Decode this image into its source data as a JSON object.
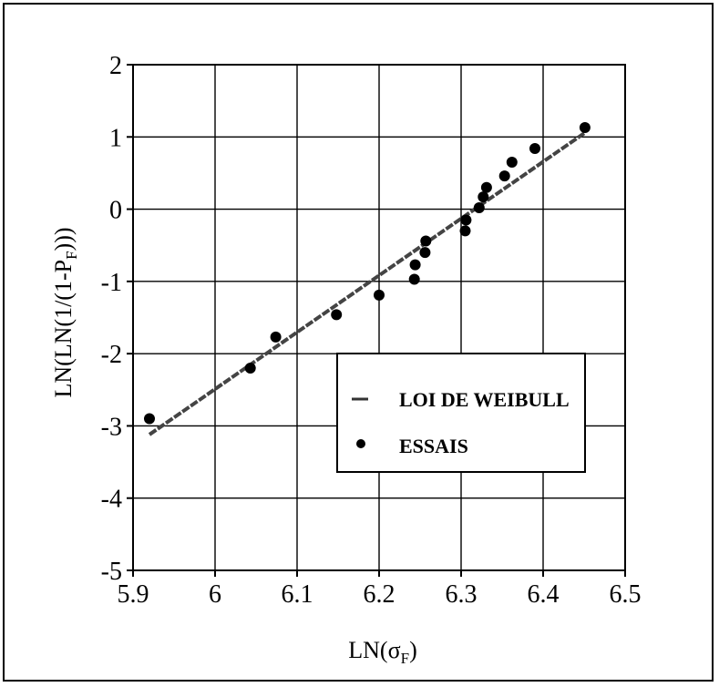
{
  "chart_data": {
    "type": "scatter",
    "xlabel_parts": [
      "LN(",
      "σ",
      "F",
      ")"
    ],
    "ylabel_parts": [
      "LN(LN(1/(1-P",
      "F",
      ")))"
    ],
    "xlim": [
      5.9,
      6.5
    ],
    "ylim": [
      -5,
      2
    ],
    "x_ticks": [
      5.9,
      6,
      6.1,
      6.2,
      6.3,
      6.4,
      6.5
    ],
    "x_tick_labels": [
      "5.9",
      "6",
      "6.1",
      "6.2",
      "6.3",
      "6.4",
      "6.5"
    ],
    "y_ticks": [
      -5,
      -4,
      -3,
      -2,
      -1,
      0,
      1,
      2
    ],
    "y_tick_labels": [
      "-5",
      "-4",
      "-3",
      "-2",
      "-1",
      "0",
      "1",
      "2"
    ],
    "grid": true,
    "legend_position": "lower-right",
    "series": [
      {
        "name": "LOI DE WEIBULL",
        "kind": "line",
        "color": "#444444",
        "x": [
          5.92,
          6.45
        ],
        "y": [
          -3.12,
          1.05
        ]
      },
      {
        "name": "ESSAIS",
        "kind": "scatter",
        "color": "#000000",
        "x": [
          5.92,
          6.043,
          6.074,
          6.148,
          6.2,
          6.243,
          6.244,
          6.256,
          6.257,
          6.305,
          6.306,
          6.322,
          6.327,
          6.331,
          6.353,
          6.362,
          6.39,
          6.451
        ],
        "y": [
          -2.9,
          -2.2,
          -1.77,
          -1.46,
          -1.19,
          -0.97,
          -0.77,
          -0.6,
          -0.44,
          -0.3,
          -0.15,
          0.02,
          0.17,
          0.3,
          0.46,
          0.65,
          0.84,
          1.13
        ]
      }
    ]
  }
}
